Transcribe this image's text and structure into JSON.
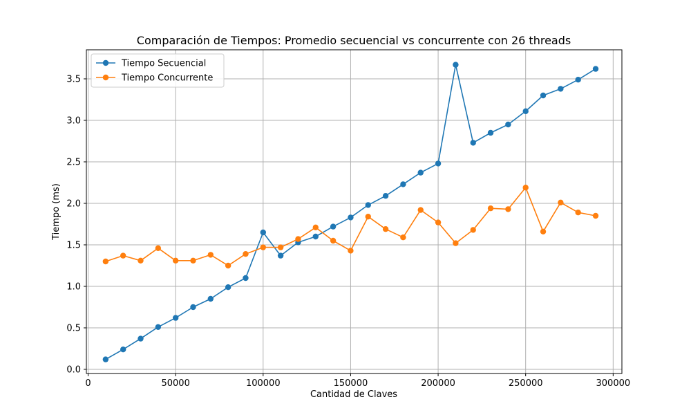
{
  "chart_data": {
    "type": "line",
    "title": "Comparación de Tiempos: Promedio secuencial vs concurrente con 26 threads",
    "xlabel": "Cantidad de Claves",
    "ylabel": "Tiempo (ms)",
    "xlim": [
      -1000,
      305000
    ],
    "ylim": [
      -0.05,
      3.85
    ],
    "x_ticks": [
      0,
      50000,
      100000,
      150000,
      200000,
      250000,
      300000
    ],
    "y_ticks": [
      0.0,
      0.5,
      1.0,
      1.5,
      2.0,
      2.5,
      3.0,
      3.5
    ],
    "x_tick_labels": [
      "0",
      "50000",
      "100000",
      "150000",
      "200000",
      "250000",
      "300000"
    ],
    "y_tick_labels": [
      "0.0",
      "0.5",
      "1.0",
      "1.5",
      "2.0",
      "2.5",
      "3.0",
      "3.5"
    ],
    "grid": true,
    "legend_position": "top-left",
    "x": [
      10000,
      20000,
      30000,
      40000,
      50000,
      60000,
      70000,
      80000,
      90000,
      100000,
      110000,
      120000,
      130000,
      140000,
      150000,
      160000,
      170000,
      180000,
      190000,
      200000,
      210000,
      220000,
      230000,
      240000,
      250000,
      260000,
      270000,
      280000,
      290000
    ],
    "series": [
      {
        "name": "Tiempo Secuencial",
        "color": "#1f77b4",
        "values": [
          0.12,
          0.24,
          0.37,
          0.51,
          0.62,
          0.75,
          0.85,
          0.99,
          1.1,
          1.65,
          1.37,
          1.53,
          1.6,
          1.72,
          1.83,
          1.98,
          2.09,
          2.23,
          2.37,
          2.48,
          3.67,
          2.73,
          2.85,
          2.95,
          3.11,
          3.3,
          3.38,
          3.49,
          3.62
        ]
      },
      {
        "name": "Tiempo Concurrente",
        "color": "#ff7f0e",
        "values": [
          1.3,
          1.37,
          1.31,
          1.46,
          1.31,
          1.31,
          1.38,
          1.25,
          1.39,
          1.47,
          1.47,
          1.57,
          1.71,
          1.55,
          1.43,
          1.84,
          1.69,
          1.59,
          1.92,
          1.77,
          1.52,
          1.68,
          1.94,
          1.93,
          2.19,
          1.66,
          2.01,
          1.89,
          1.85
        ]
      }
    ]
  }
}
